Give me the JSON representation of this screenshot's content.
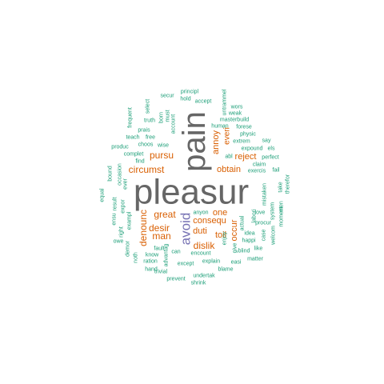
{
  "colors": {
    "background": "#ffffff",
    "dark_gray": "#666666",
    "purple": "#7570b3",
    "orange": "#d95f02",
    "teal": "#1b9e77"
  },
  "words": [
    {
      "text": "pleasur",
      "color": "dark_gray"
    },
    {
      "text": "pain",
      "color": "dark_gray"
    },
    {
      "text": "avoid",
      "color": "purple"
    },
    {
      "text": "pursu",
      "color": "orange"
    },
    {
      "text": "reject",
      "color": "orange"
    },
    {
      "text": "annoy",
      "color": "orange"
    },
    {
      "text": "everi",
      "color": "orange"
    },
    {
      "text": "circumst",
      "color": "orange"
    },
    {
      "text": "obtain",
      "color": "orange"
    },
    {
      "text": "denounc",
      "color": "orange"
    },
    {
      "text": "great",
      "color": "orange"
    },
    {
      "text": "one",
      "color": "orange"
    },
    {
      "text": "consequ",
      "color": "orange"
    },
    {
      "text": "desir",
      "color": "orange"
    },
    {
      "text": "duti",
      "color": "orange"
    },
    {
      "text": "man",
      "color": "orange"
    },
    {
      "text": "occur",
      "color": "orange"
    },
    {
      "text": "toil",
      "color": "orange"
    },
    {
      "text": "dislik",
      "color": "orange"
    },
    {
      "text": "principl",
      "color": "teal"
    },
    {
      "text": "secur",
      "color": "teal"
    },
    {
      "text": "hold",
      "color": "teal"
    },
    {
      "text": "accept",
      "color": "teal"
    },
    {
      "text": "untrammel",
      "color": "teal"
    },
    {
      "text": "wors",
      "color": "teal"
    },
    {
      "text": "weak",
      "color": "teal"
    },
    {
      "text": "masterbuild",
      "color": "teal"
    },
    {
      "text": "human",
      "color": "teal"
    },
    {
      "text": "forese",
      "color": "teal"
    },
    {
      "text": "physic",
      "color": "teal"
    },
    {
      "text": "say",
      "color": "teal"
    },
    {
      "text": "expound",
      "color": "teal"
    },
    {
      "text": "els",
      "color": "teal"
    },
    {
      "text": "extrem",
      "color": "teal"
    },
    {
      "text": "abl",
      "color": "teal"
    },
    {
      "text": "perfect",
      "color": "teal"
    },
    {
      "text": "claim",
      "color": "teal"
    },
    {
      "text": "exercis",
      "color": "teal"
    },
    {
      "text": "fail",
      "color": "teal"
    },
    {
      "text": "frequent",
      "color": "teal"
    },
    {
      "text": "select",
      "color": "teal"
    },
    {
      "text": "truth",
      "color": "teal"
    },
    {
      "text": "born",
      "color": "teal"
    },
    {
      "text": "must",
      "color": "teal"
    },
    {
      "text": "account",
      "color": "teal"
    },
    {
      "text": "prais",
      "color": "teal"
    },
    {
      "text": "teach",
      "color": "teal"
    },
    {
      "text": "free",
      "color": "teal"
    },
    {
      "text": "choos",
      "color": "teal"
    },
    {
      "text": "wise",
      "color": "teal"
    },
    {
      "text": "produc",
      "color": "teal"
    },
    {
      "text": "complet",
      "color": "teal"
    },
    {
      "text": "find",
      "color": "teal"
    },
    {
      "text": "bound",
      "color": "teal"
    },
    {
      "text": "occasion",
      "color": "teal"
    },
    {
      "text": "ever",
      "color": "teal"
    },
    {
      "text": "equal",
      "color": "teal"
    },
    {
      "text": "ensu",
      "color": "teal"
    },
    {
      "text": "result",
      "color": "teal"
    },
    {
      "text": "right",
      "color": "teal"
    },
    {
      "text": "expor",
      "color": "teal"
    },
    {
      "text": "exampl",
      "color": "teal"
    },
    {
      "text": "owe",
      "color": "teal"
    },
    {
      "text": "demor",
      "color": "teal"
    },
    {
      "text": "noth",
      "color": "teal"
    },
    {
      "text": "know",
      "color": "teal"
    },
    {
      "text": "ration",
      "color": "teal"
    },
    {
      "text": "hand",
      "color": "teal"
    },
    {
      "text": "advantag",
      "color": "teal"
    },
    {
      "text": "fault",
      "color": "teal"
    },
    {
      "text": "can",
      "color": "teal"
    },
    {
      "text": "anyon",
      "color": "teal"
    },
    {
      "text": "encount",
      "color": "teal"
    },
    {
      "text": "except",
      "color": "teal"
    },
    {
      "text": "explain",
      "color": "teal"
    },
    {
      "text": "trivial",
      "color": "teal"
    },
    {
      "text": "prevent",
      "color": "teal"
    },
    {
      "text": "undertak",
      "color": "teal"
    },
    {
      "text": "shrink",
      "color": "teal"
    },
    {
      "text": "blame",
      "color": "teal"
    },
    {
      "text": "easi",
      "color": "teal"
    },
    {
      "text": "matter",
      "color": "teal"
    },
    {
      "text": "give",
      "color": "teal"
    },
    {
      "text": "enjoy",
      "color": "teal"
    },
    {
      "text": "actual",
      "color": "teal"
    },
    {
      "text": "happi",
      "color": "teal"
    },
    {
      "text": "blind",
      "color": "teal"
    },
    {
      "text": "idea",
      "color": "teal"
    },
    {
      "text": "labori",
      "color": "teal"
    },
    {
      "text": "procur",
      "color": "teal"
    },
    {
      "text": "like",
      "color": "teal"
    },
    {
      "text": "love",
      "color": "teal"
    },
    {
      "text": "case",
      "color": "teal"
    },
    {
      "text": "mistaken",
      "color": "teal"
    },
    {
      "text": "welcom",
      "color": "teal"
    },
    {
      "text": "system",
      "color": "teal"
    },
    {
      "text": "moment",
      "color": "teal"
    },
    {
      "text": "take",
      "color": "teal"
    },
    {
      "text": "men",
      "color": "teal"
    },
    {
      "text": "therefor",
      "color": "teal"
    }
  ]
}
